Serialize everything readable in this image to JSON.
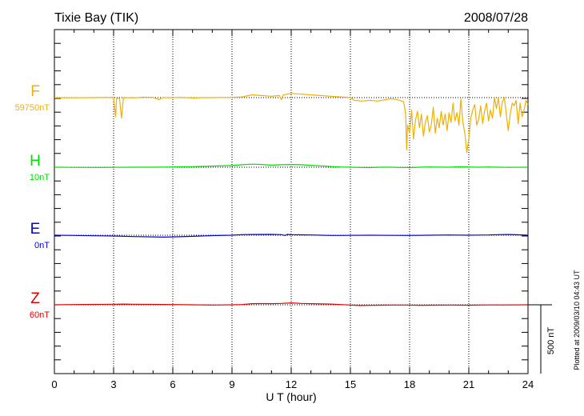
{
  "station_title": "Tixie Bay (TIK)",
  "date_label": "2008/07/28",
  "plotted_note": "Plotted at 2009/03/10 04:43 UT",
  "scale_label": "500 nT",
  "chart_data": {
    "type": "line",
    "xlabel": "U T (hour)",
    "xlim": [
      0,
      24
    ],
    "x_ticks": [
      0,
      3,
      6,
      9,
      12,
      15,
      18,
      21,
      24
    ],
    "x_tick_labels": [
      "0",
      "3",
      "6",
      "9",
      "12",
      "15",
      "18",
      "21",
      "24"
    ],
    "scale_bar_nT": 500,
    "grid": "dotted vertical lines every 3 h and dotted baseline per component",
    "series": [
      {
        "name": "F",
        "baseline_label": "59750nT",
        "color": "#f0b000",
        "points": [
          [
            0,
            -2
          ],
          [
            1,
            -1
          ],
          [
            2,
            0
          ],
          [
            3,
            2
          ],
          [
            3.1,
            -140
          ],
          [
            3.15,
            -5
          ],
          [
            3.3,
            -5
          ],
          [
            3.4,
            -150
          ],
          [
            3.5,
            0
          ],
          [
            4,
            -2
          ],
          [
            4.5,
            3
          ],
          [
            5,
            2
          ],
          [
            5.3,
            -15
          ],
          [
            5.5,
            0
          ],
          [
            6,
            0
          ],
          [
            6.5,
            2
          ],
          [
            7,
            -3
          ],
          [
            7.5,
            0
          ],
          [
            8,
            0
          ],
          [
            8.5,
            1
          ],
          [
            9,
            2
          ],
          [
            9.5,
            5
          ],
          [
            10,
            20
          ],
          [
            10.5,
            15
          ],
          [
            11,
            10
          ],
          [
            11.4,
            15
          ],
          [
            11.5,
            -15
          ],
          [
            11.6,
            20
          ],
          [
            12,
            30
          ],
          [
            12.5,
            25
          ],
          [
            13,
            20
          ],
          [
            13.5,
            15
          ],
          [
            14,
            10
          ],
          [
            14.5,
            5
          ],
          [
            15,
            0
          ],
          [
            15.2,
            -20
          ],
          [
            15.6,
            -25
          ],
          [
            16,
            -20
          ],
          [
            16.4,
            -25
          ],
          [
            16.8,
            -15
          ],
          [
            17,
            -10
          ],
          [
            17.2,
            -10
          ],
          [
            17.5,
            -20
          ],
          [
            17.7,
            -30
          ],
          [
            17.8,
            -120
          ],
          [
            17.85,
            -380
          ],
          [
            17.9,
            -200
          ],
          [
            18.0,
            -260
          ],
          [
            18.1,
            -90
          ],
          [
            18.2,
            -300
          ],
          [
            18.3,
            -160
          ],
          [
            18.4,
            -100
          ],
          [
            18.5,
            -220
          ],
          [
            18.6,
            -120
          ],
          [
            18.7,
            -280
          ],
          [
            18.8,
            -180
          ],
          [
            18.9,
            -130
          ],
          [
            19.0,
            -250
          ],
          [
            19.1,
            -200
          ],
          [
            19.2,
            -70
          ],
          [
            19.3,
            -260
          ],
          [
            19.4,
            -150
          ],
          [
            19.5,
            -220
          ],
          [
            19.6,
            -100
          ],
          [
            19.7,
            -200
          ],
          [
            19.8,
            -120
          ],
          [
            19.9,
            -240
          ],
          [
            20.0,
            -110
          ],
          [
            20.1,
            -180
          ],
          [
            20.2,
            -40
          ],
          [
            20.3,
            -170
          ],
          [
            20.4,
            -110
          ],
          [
            20.5,
            -200
          ],
          [
            20.6,
            -10
          ],
          [
            20.7,
            -180
          ],
          [
            20.8,
            -260
          ],
          [
            20.9,
            -400
          ],
          [
            21.0,
            -300
          ],
          [
            21.1,
            -150
          ],
          [
            21.2,
            -90
          ],
          [
            21.3,
            -50
          ],
          [
            21.4,
            -200
          ],
          [
            21.5,
            -160
          ],
          [
            21.6,
            -60
          ],
          [
            21.7,
            -190
          ],
          [
            21.8,
            -100
          ],
          [
            21.9,
            -40
          ],
          [
            22.0,
            -170
          ],
          [
            22.1,
            -90
          ],
          [
            22.2,
            -150
          ],
          [
            22.3,
            0
          ],
          [
            22.4,
            -80
          ],
          [
            22.5,
            0
          ],
          [
            22.6,
            -140
          ],
          [
            22.7,
            -30
          ],
          [
            22.8,
            0
          ],
          [
            22.9,
            -120
          ],
          [
            23.0,
            -240
          ],
          [
            23.1,
            -120
          ],
          [
            23.2,
            -40
          ],
          [
            23.3,
            -60
          ],
          [
            23.4,
            -20
          ],
          [
            23.5,
            -190
          ],
          [
            23.6,
            -40
          ],
          [
            23.7,
            -140
          ],
          [
            23.8,
            -90
          ],
          [
            23.9,
            -20
          ],
          [
            24.0,
            -50
          ]
        ]
      },
      {
        "name": "H",
        "baseline_label": "10nT",
        "color": "#00e000",
        "points": [
          [
            0,
            0
          ],
          [
            1,
            -1
          ],
          [
            2,
            -2
          ],
          [
            3,
            -1
          ],
          [
            4,
            0
          ],
          [
            5,
            0
          ],
          [
            6,
            2
          ],
          [
            7,
            4
          ],
          [
            8,
            8
          ],
          [
            9,
            12
          ],
          [
            9.5,
            18
          ],
          [
            10,
            22
          ],
          [
            10.5,
            20
          ],
          [
            11,
            15
          ],
          [
            11.5,
            18
          ],
          [
            12,
            20
          ],
          [
            12.5,
            18
          ],
          [
            13,
            14
          ],
          [
            13.5,
            10
          ],
          [
            14,
            5
          ],
          [
            14.5,
            2
          ],
          [
            15,
            0
          ],
          [
            15.5,
            -2
          ],
          [
            16,
            -3
          ],
          [
            16.5,
            0
          ],
          [
            17,
            0
          ],
          [
            17.5,
            -2
          ],
          [
            18,
            -3
          ],
          [
            18.5,
            0
          ],
          [
            19,
            2
          ],
          [
            19.5,
            1
          ],
          [
            20,
            0
          ],
          [
            20.5,
            3
          ],
          [
            21,
            2
          ],
          [
            21.5,
            0
          ],
          [
            22,
            2
          ],
          [
            22.5,
            0
          ],
          [
            23,
            -1
          ],
          [
            24,
            0
          ]
        ]
      },
      {
        "name": "E",
        "baseline_label": "0nT",
        "color": "#0000e0",
        "points": [
          [
            0,
            0
          ],
          [
            1,
            -2
          ],
          [
            2,
            -4
          ],
          [
            3,
            -6
          ],
          [
            4,
            -10
          ],
          [
            5,
            -12
          ],
          [
            5.5,
            -14
          ],
          [
            6,
            -12
          ],
          [
            7,
            -8
          ],
          [
            8,
            -3
          ],
          [
            9,
            0
          ],
          [
            9.5,
            4
          ],
          [
            10,
            5
          ],
          [
            11,
            6
          ],
          [
            11.5,
            4
          ],
          [
            11.7,
            -2
          ],
          [
            11.8,
            6
          ],
          [
            12,
            4
          ],
          [
            13,
            2
          ],
          [
            13.5,
            0
          ],
          [
            14,
            -2
          ],
          [
            14.5,
            -2
          ],
          [
            15,
            -1
          ],
          [
            16,
            0
          ],
          [
            17,
            -1
          ],
          [
            18,
            -2
          ],
          [
            19,
            0
          ],
          [
            20,
            2
          ],
          [
            21,
            0
          ],
          [
            21.5,
            1
          ],
          [
            22,
            2
          ],
          [
            22.5,
            4
          ],
          [
            23,
            5
          ],
          [
            23.5,
            3
          ],
          [
            24,
            0
          ]
        ]
      },
      {
        "name": "Z",
        "baseline_label": "60nT",
        "color": "#e00000",
        "points": [
          [
            0,
            0
          ],
          [
            1,
            2
          ],
          [
            2,
            3
          ],
          [
            3,
            4
          ],
          [
            3.5,
            5
          ],
          [
            4,
            4
          ],
          [
            5,
            3
          ],
          [
            6,
            2
          ],
          [
            7,
            0
          ],
          [
            8,
            -2
          ],
          [
            8.5,
            -1
          ],
          [
            9,
            0
          ],
          [
            9.5,
            2
          ],
          [
            10,
            8
          ],
          [
            10.5,
            9
          ],
          [
            11,
            8
          ],
          [
            11.5,
            10
          ],
          [
            12,
            14
          ],
          [
            12.5,
            10
          ],
          [
            13,
            8
          ],
          [
            14,
            5
          ],
          [
            14.5,
            2
          ],
          [
            15,
            -2
          ],
          [
            15.5,
            -5
          ],
          [
            16,
            -4
          ],
          [
            16.5,
            -3
          ],
          [
            17,
            -2
          ],
          [
            18,
            -2
          ],
          [
            18.5,
            -4
          ],
          [
            19,
            -3
          ],
          [
            20,
            -2
          ],
          [
            21,
            -3
          ],
          [
            21.5,
            -2
          ],
          [
            22,
            -1
          ],
          [
            23,
            -1
          ],
          [
            24,
            0
          ]
        ]
      }
    ]
  }
}
